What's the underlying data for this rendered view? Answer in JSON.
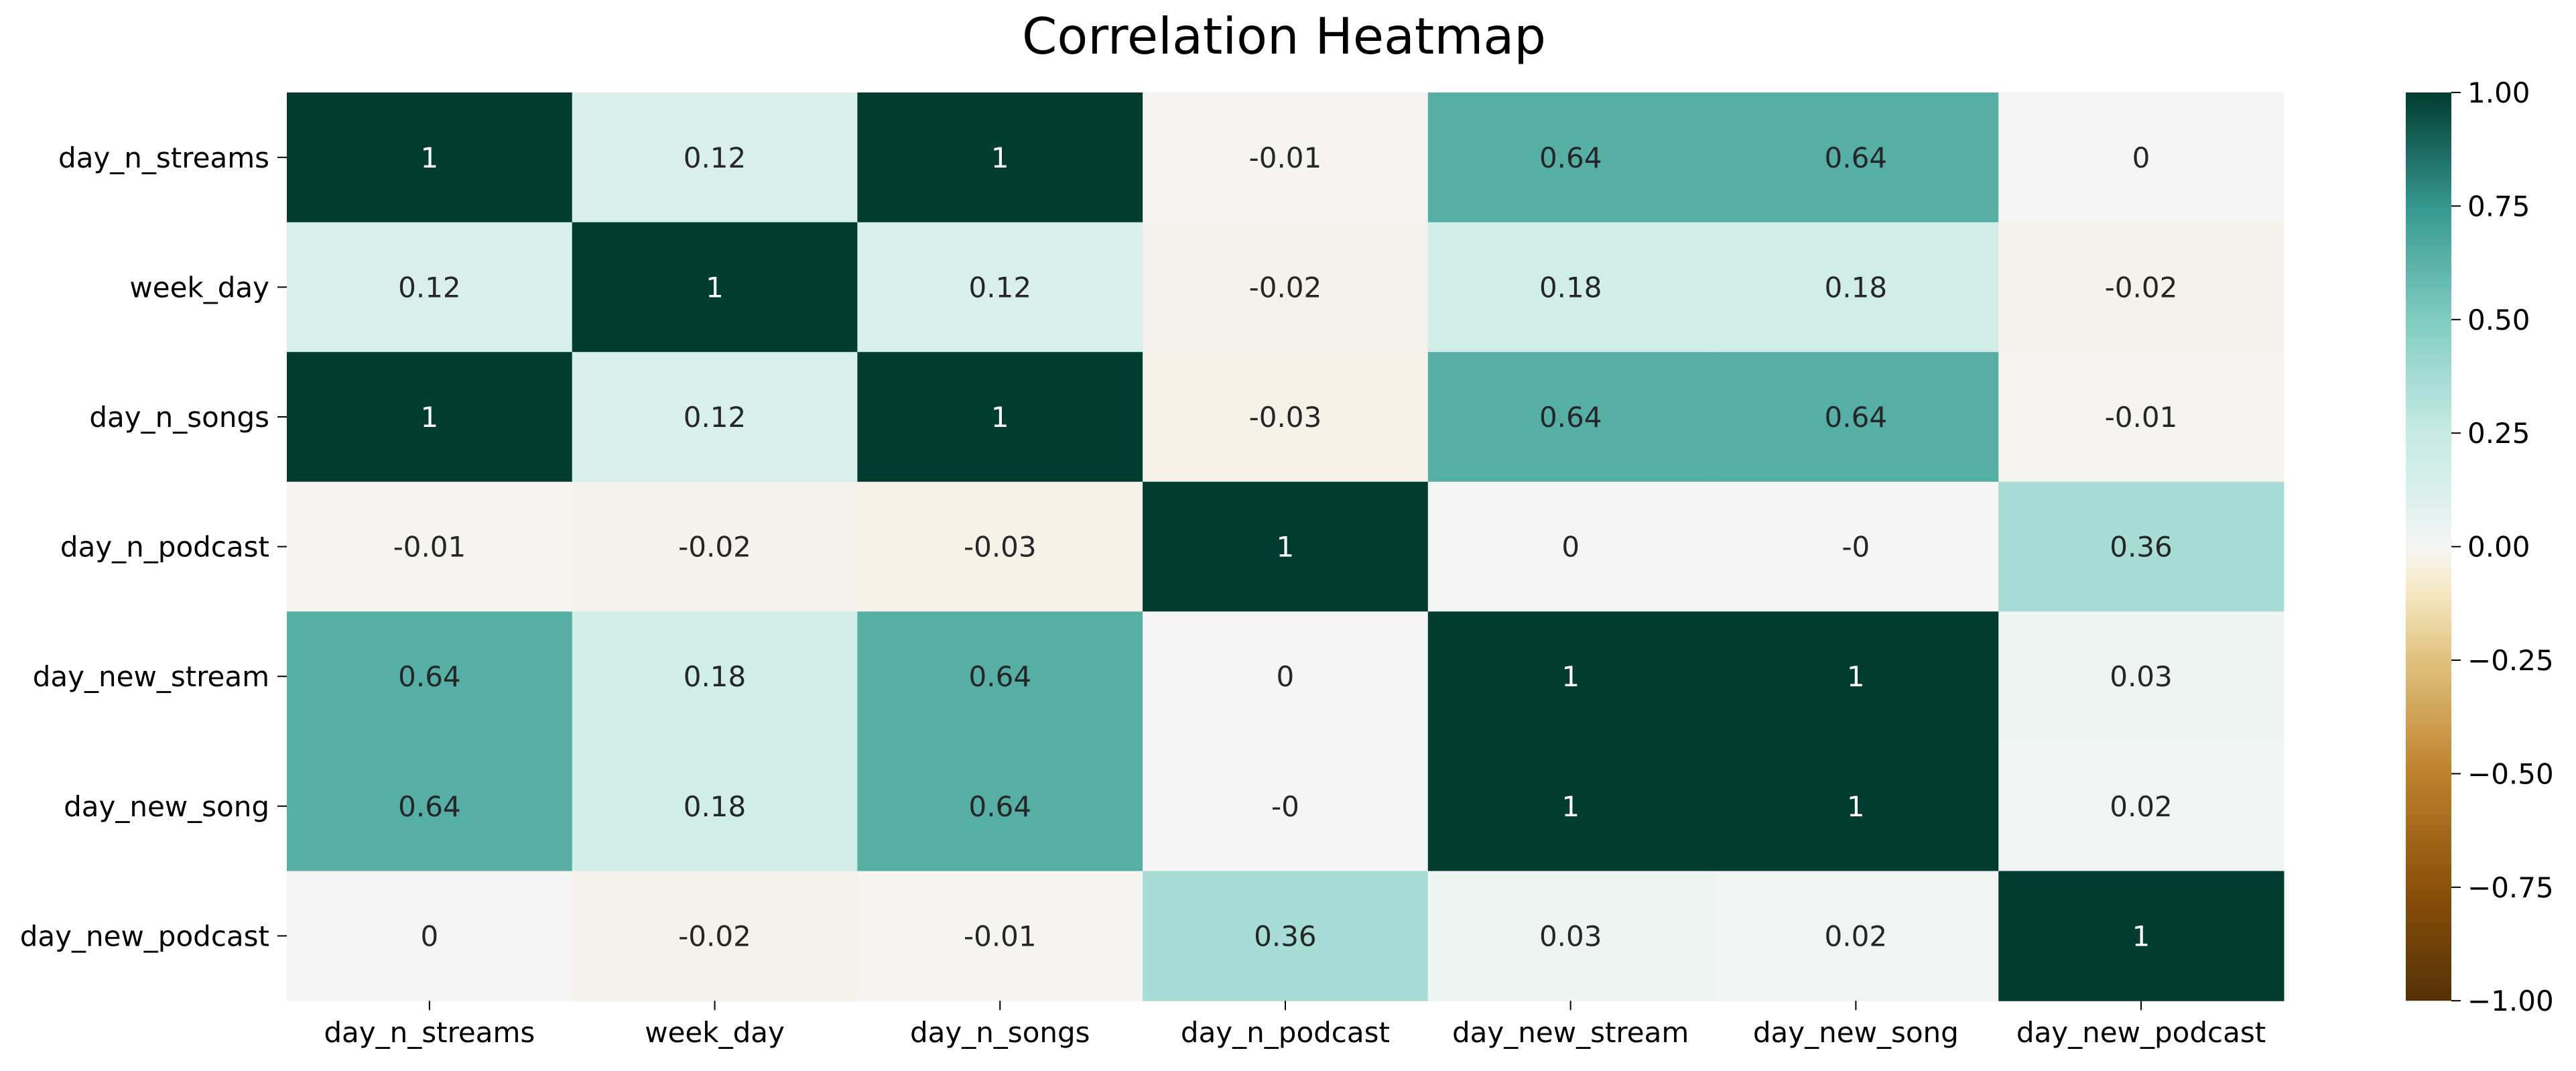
{
  "chart_data": {
    "type": "heatmap",
    "title": "Correlation Heatmap",
    "rows": [
      "day_n_streams",
      "week_day",
      "day_n_songs",
      "day_n_podcast",
      "day_new_stream",
      "day_new_song",
      "day_new_podcast"
    ],
    "columns": [
      "day_n_streams",
      "week_day",
      "day_n_songs",
      "day_n_podcast",
      "day_new_stream",
      "day_new_song",
      "day_new_podcast"
    ],
    "values": [
      [
        1,
        0.12,
        1,
        -0.01,
        0.64,
        0.64,
        0
      ],
      [
        0.12,
        1,
        0.12,
        -0.02,
        0.18,
        0.18,
        -0.02
      ],
      [
        1,
        0.12,
        1,
        -0.03,
        0.64,
        0.64,
        -0.01
      ],
      [
        -0.01,
        -0.02,
        -0.03,
        1,
        0,
        0,
        0.36
      ],
      [
        0.64,
        0.18,
        0.64,
        0,
        1,
        1,
        0.03
      ],
      [
        0.64,
        0.18,
        0.64,
        0,
        1,
        1,
        0.02
      ],
      [
        0,
        -0.02,
        -0.01,
        0.36,
        0.03,
        0.02,
        1
      ]
    ],
    "cell_labels": [
      [
        "1",
        "0.12",
        "1",
        "-0.01",
        "0.64",
        "0.64",
        "0"
      ],
      [
        "0.12",
        "1",
        "0.12",
        "-0.02",
        "0.18",
        "0.18",
        "-0.02"
      ],
      [
        "1",
        "0.12",
        "1",
        "-0.03",
        "0.64",
        "0.64",
        "-0.01"
      ],
      [
        "-0.01",
        "-0.02",
        "-0.03",
        "1",
        "0",
        "-0",
        "0.36"
      ],
      [
        "0.64",
        "0.18",
        "0.64",
        "0",
        "1",
        "1",
        "0.03"
      ],
      [
        "0.64",
        "0.18",
        "0.64",
        "-0",
        "1",
        "1",
        "0.02"
      ],
      [
        "0",
        "-0.02",
        "-0.01",
        "0.36",
        "0.03",
        "0.02",
        "1"
      ]
    ],
    "colormap": "BrBG",
    "color_range": [
      -1,
      1
    ],
    "colorbar": {
      "ticks": [
        1,
        0.75,
        0.5,
        0.25,
        0,
        -0.25,
        -0.5,
        -0.75,
        -1
      ],
      "tick_labels": [
        "1.00",
        "0.75",
        "0.50",
        "0.25",
        "0.00",
        "−0.25",
        "−0.50",
        "−0.75",
        "−1.00"
      ]
    },
    "grid": false
  }
}
